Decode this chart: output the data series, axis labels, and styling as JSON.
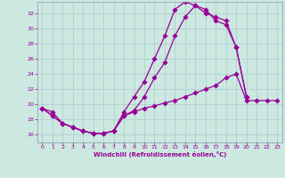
{
  "background_color": "#cce8e0",
  "grid_color": "#aacccc",
  "line_color": "#990099",
  "xlabel": "Windchill (Refroidissement éolien,°C)",
  "xlim": [
    -0.5,
    23.5
  ],
  "ylim": [
    15.0,
    33.5
  ],
  "yticks": [
    16,
    18,
    20,
    22,
    24,
    26,
    28,
    30,
    32
  ],
  "xticks": [
    0,
    1,
    2,
    3,
    4,
    5,
    6,
    7,
    8,
    9,
    10,
    11,
    12,
    13,
    14,
    15,
    16,
    17,
    18,
    19,
    20,
    21,
    22,
    23
  ],
  "series1_x": [
    0,
    1,
    2,
    3,
    4,
    5,
    6,
    7,
    8,
    9,
    10,
    11,
    12,
    13,
    14,
    15,
    16,
    17,
    18,
    19,
    20,
    21,
    22,
    23
  ],
  "series1_y": [
    19.5,
    18.5,
    17.5,
    17.0,
    16.5,
    16.2,
    16.2,
    16.5,
    18.5,
    19.0,
    19.5,
    19.8,
    20.2,
    20.5,
    21.0,
    21.5,
    22.0,
    22.5,
    23.5,
    24.0,
    20.5,
    20.5,
    20.5,
    20.5
  ],
  "series2_x": [
    0,
    1,
    2,
    3,
    4,
    5,
    6,
    7,
    8,
    9,
    10,
    11,
    12,
    13,
    14,
    15,
    16,
    17,
    18,
    19,
    20
  ],
  "series2_y": [
    19.5,
    18.5,
    17.5,
    17.0,
    16.5,
    16.2,
    16.2,
    16.5,
    18.5,
    19.2,
    21.0,
    23.5,
    25.5,
    29.0,
    31.5,
    33.0,
    32.0,
    31.5,
    31.0,
    27.5,
    21.0
  ],
  "series3_x": [
    0,
    1,
    2,
    3,
    4,
    5,
    6,
    7,
    8,
    9,
    10,
    11,
    12,
    13,
    14,
    15,
    16,
    17,
    18,
    19,
    20
  ],
  "series3_y": [
    19.5,
    19.0,
    17.5,
    17.0,
    16.5,
    16.2,
    16.2,
    16.5,
    19.0,
    21.0,
    23.0,
    26.0,
    29.0,
    32.5,
    33.5,
    33.0,
    32.5,
    31.0,
    30.5,
    27.5,
    21.0
  ]
}
